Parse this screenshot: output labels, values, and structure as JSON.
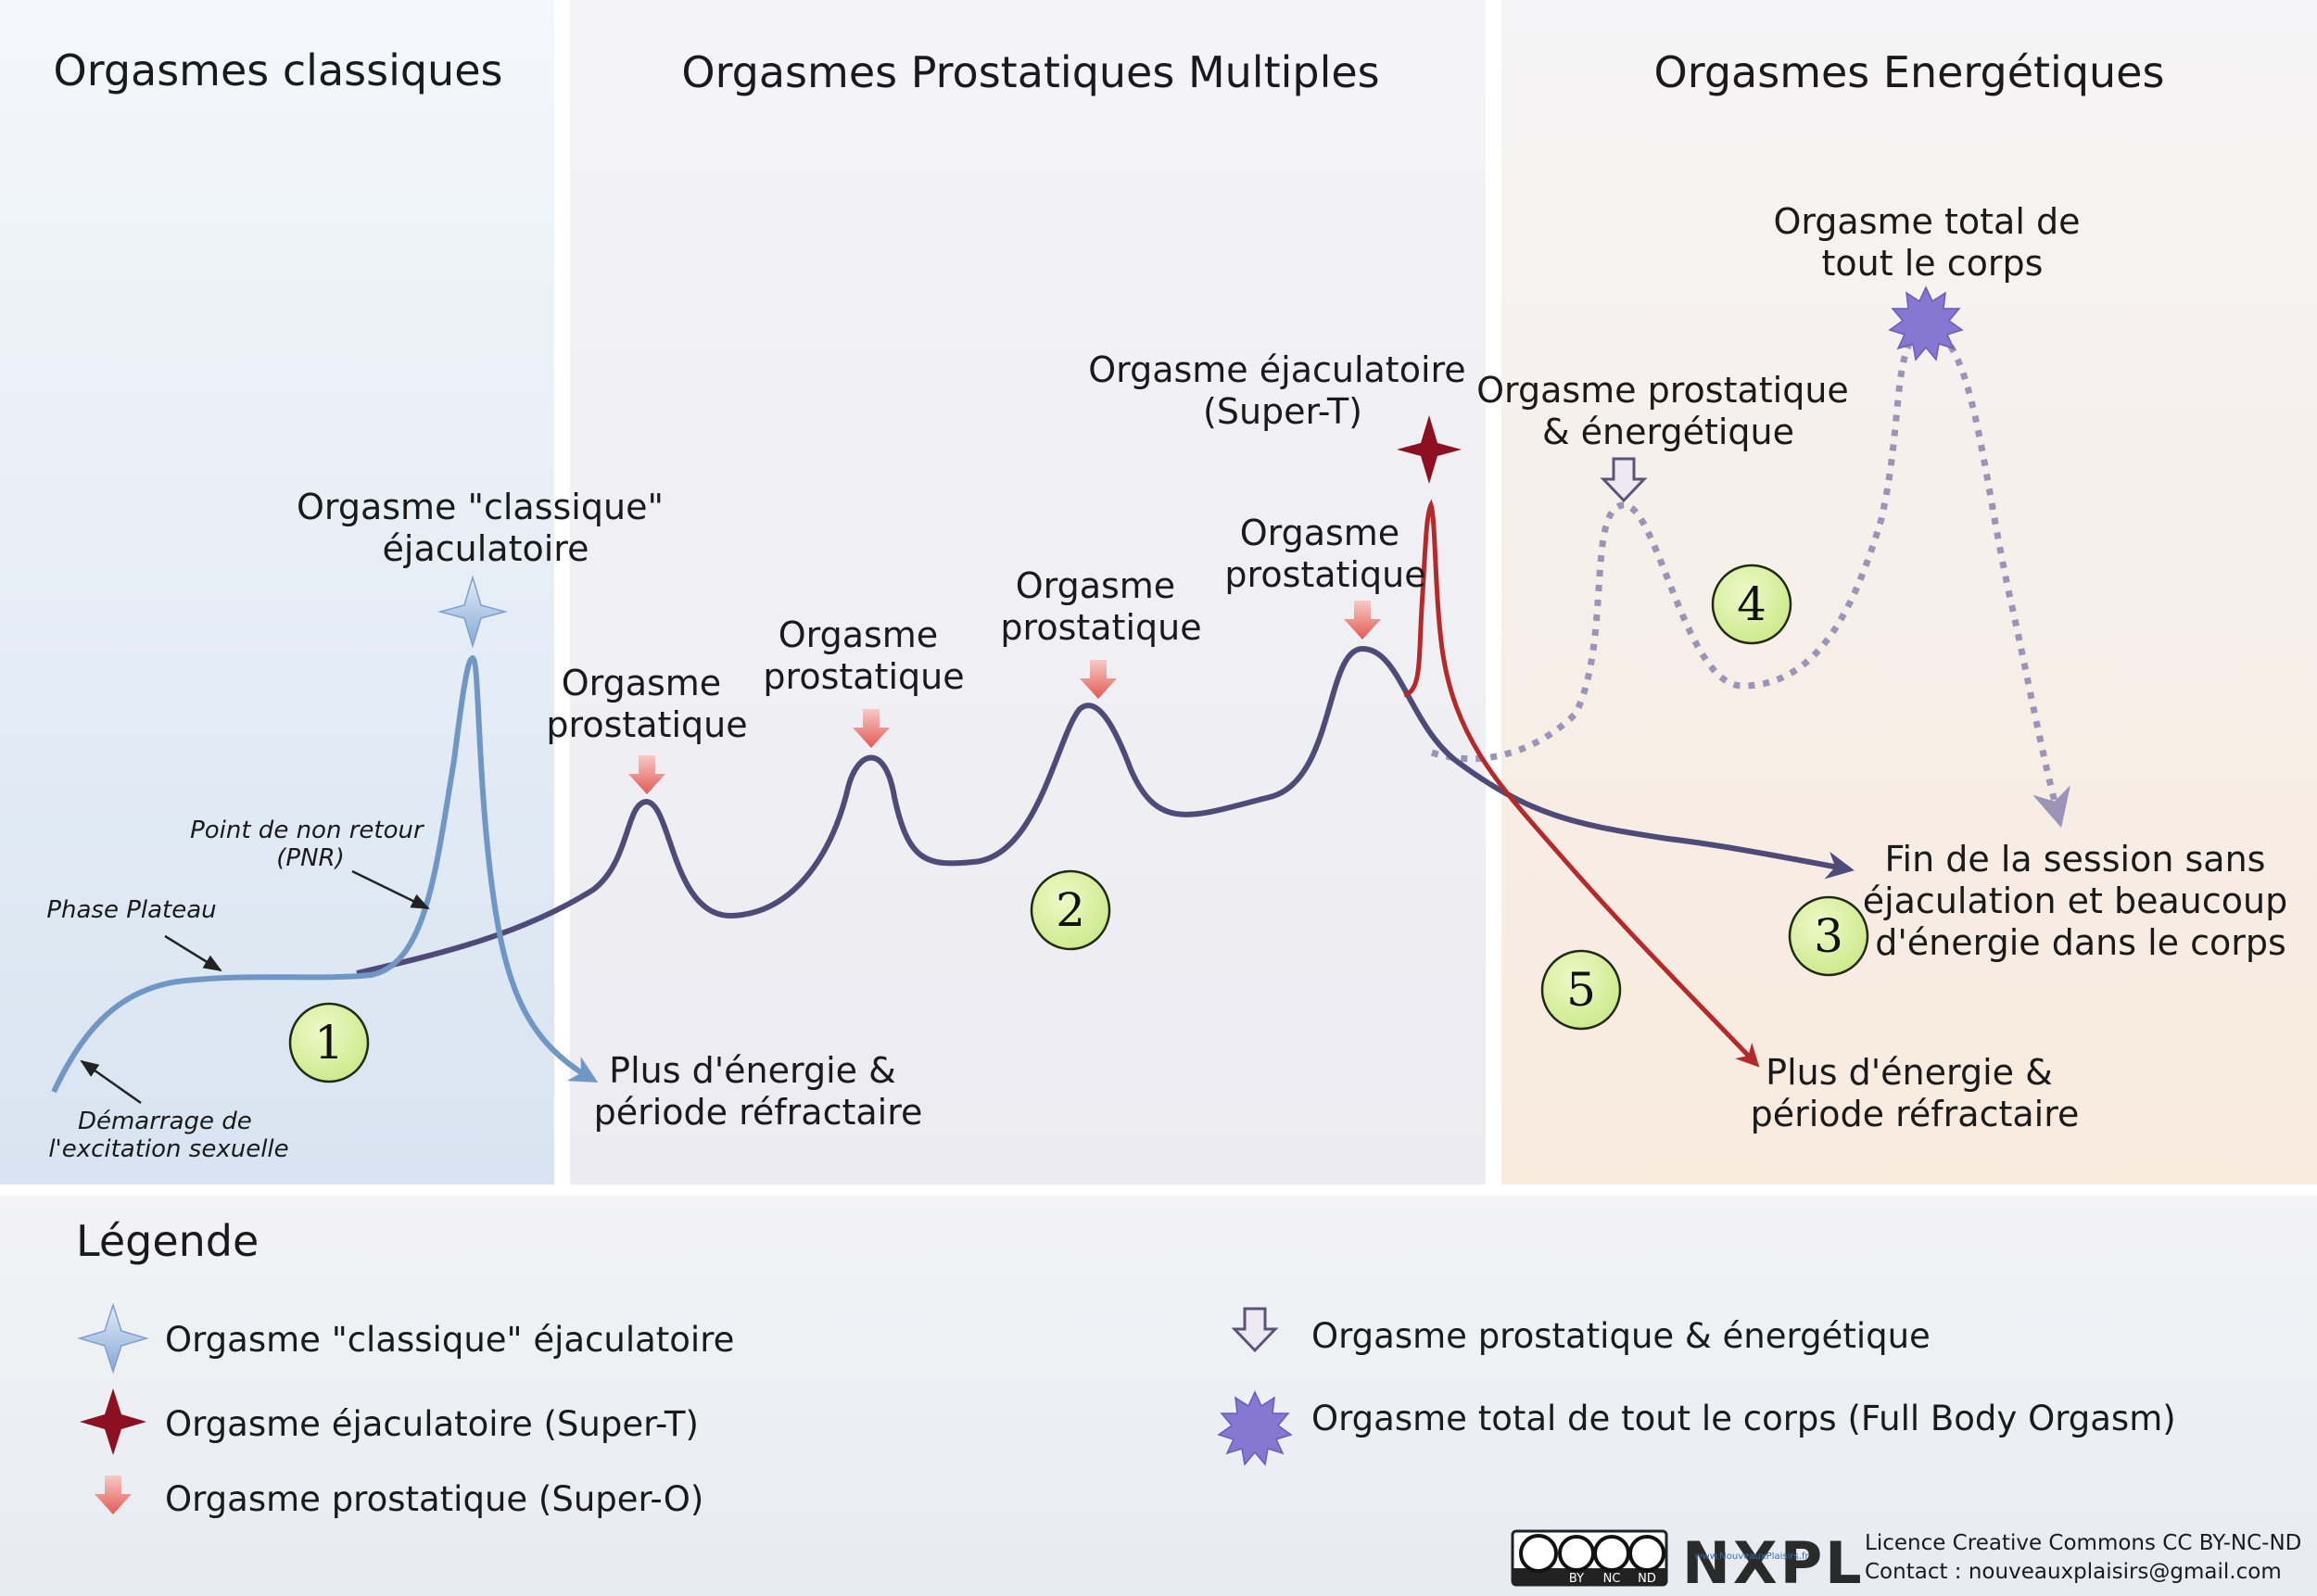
{
  "sections": {
    "classic": {
      "title": "Orgasmes classiques"
    },
    "prostatic": {
      "title": "Orgasmes Prostatiques Multiples"
    },
    "energetic": {
      "title": "Orgasmes Energétiques"
    }
  },
  "annotations": {
    "classic_peak": [
      "Orgasme \"classique\"",
      "éjaculatoire"
    ],
    "prostatic_1": [
      "Orgasme",
      "prostatique"
    ],
    "prostatic_2": [
      "Orgasme",
      "prostatique"
    ],
    "prostatic_3": [
      "Orgasme",
      "prostatique"
    ],
    "prostatic_4": [
      "Orgasme",
      "prostatique"
    ],
    "super_t": [
      "Orgasme éjaculatoire",
      "(Super-T)"
    ],
    "prostatic_energetic": [
      "Orgasme prostatique",
      "& énergétique"
    ],
    "full_body": [
      "Orgasme total de",
      "tout le corps"
    ],
    "pnr": [
      "Point de non retour",
      "(PNR)"
    ],
    "plateau": "Phase Plateau",
    "start": [
      "Démarrage de",
      "l'excitation sexuelle"
    ],
    "outcome_classic": [
      "Plus d'énergie &",
      "période réfractaire"
    ],
    "outcome_super_t": [
      "Plus d'énergie &",
      "période réfractaire"
    ],
    "outcome_session": [
      "Fin de la session sans",
      "éjaculation et beaucoup",
      "d'énergie dans le corps"
    ]
  },
  "path_numbers": [
    "1",
    "2",
    "3",
    "4",
    "5"
  ],
  "legend": {
    "title": "Légende",
    "items": [
      {
        "icon": "four-point-star-blue-icon",
        "label": "Orgasme \"classique\" éjaculatoire"
      },
      {
        "icon": "four-point-star-red-icon",
        "label": "Orgasme éjaculatoire (Super-T)"
      },
      {
        "icon": "red-down-arrow-icon",
        "label": "Orgasme prostatique (Super-O)"
      },
      {
        "icon": "hollow-down-arrow-icon",
        "label": "Orgasme prostatique & énergétique"
      },
      {
        "icon": "purple-starburst-icon",
        "label": "Orgasme total de tout le corps (Full Body Orgasm)"
      }
    ]
  },
  "footer": {
    "license_badge": [
      "BY",
      "NC",
      "ND"
    ],
    "logo": "NXPL",
    "logo_url": "www.NouveauxPlaisirs.fr",
    "license": "Licence Creative Commons CC BY-NC-ND",
    "contact": "Contact : nouveauxplaisirs@gmail.com"
  },
  "colors": {
    "classic_curve": "#6f96c4",
    "main_curve": "#4f4a78",
    "super_t_curve": "#b42a2a",
    "energetic_curve": "#9a94b8",
    "number_circle": "#d9f0a0"
  }
}
